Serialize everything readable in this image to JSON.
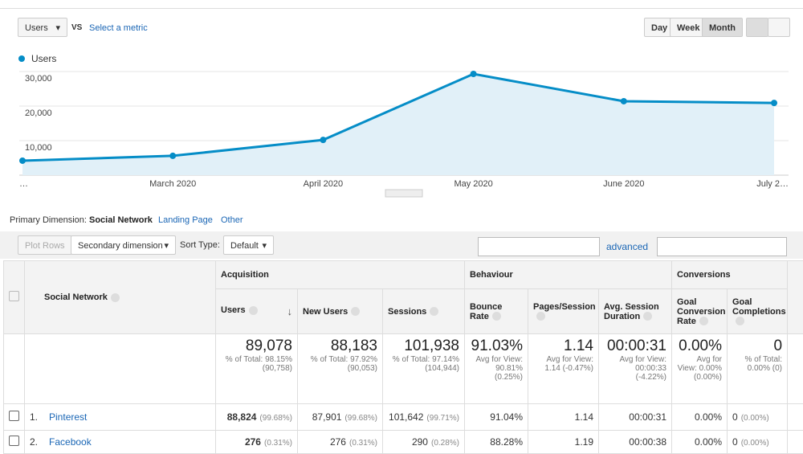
{
  "controls": {
    "metric": "Users",
    "vs": "VS",
    "select_metric": "Select a metric",
    "periods": [
      "Day",
      "Week",
      "Month"
    ]
  },
  "chart_data": {
    "type": "line",
    "categories": [
      "…",
      "March 2020",
      "April 2020",
      "May 2020",
      "June 2020",
      "July 2…"
    ],
    "series": [
      {
        "name": "Users",
        "color": "#058dc7",
        "values": [
          4200,
          5600,
          10200,
          29300,
          21400,
          20900
        ]
      }
    ],
    "ylim": [
      0,
      30000
    ],
    "yticks": [
      {
        "value": 10000,
        "label": "10,000"
      },
      {
        "value": 20000,
        "label": "20,000"
      },
      {
        "value": 30000,
        "label": "30,000"
      }
    ],
    "grid": true,
    "area": true
  },
  "dimensions": {
    "label": "Primary Dimension:",
    "items": [
      "Social Network",
      "Landing Page",
      "Other"
    ]
  },
  "toolbar": {
    "plot_rows": "Plot Rows",
    "secondary": "Secondary dimension",
    "sort_label": "Sort Type:",
    "sort": "Default",
    "advanced": "advanced"
  },
  "table": {
    "first_column": "Social Network",
    "groups": [
      "Acquisition",
      "Behaviour",
      "Conversions"
    ],
    "columns": [
      "Users",
      "New Users",
      "Sessions",
      "Bounce Rate",
      "Pages/Session",
      "Avg. Session Duration",
      "Goal Conversion Rate",
      "Goal Completions"
    ],
    "totals": [
      [
        "89,078",
        "% of Total: 98.15% (90,758)"
      ],
      [
        "88,183",
        "% of Total: 97.92% (90,053)"
      ],
      [
        "101,938",
        "% of Total: 97.14% (104,944)"
      ],
      [
        "91.03%",
        "Avg for View: 90.81% (0.25%)"
      ],
      [
        "1.14",
        "Avg for View: 1.14 (-0.47%)"
      ],
      [
        "00:00:31",
        "Avg for View: 00:00:33 (-4.22%)"
      ],
      [
        "0.00%",
        "Avg for View: 0.00% (0.00%)"
      ],
      [
        "0",
        "% of Total: 0.00% (0)"
      ]
    ],
    "rows": [
      {
        "rank": "1.",
        "name": "Pinterest",
        "cells": [
          [
            "88,824",
            "(99.68%)"
          ],
          [
            "87,901",
            "(99.68%)"
          ],
          [
            "101,642",
            "(99.71%)"
          ],
          [
            "91.04%"
          ],
          [
            "1.14"
          ],
          [
            "00:00:31"
          ],
          [
            "0.00%"
          ],
          [
            "0",
            "(0.00%)"
          ]
        ]
      },
      {
        "rank": "2.",
        "name": "Facebook",
        "cells": [
          [
            "276",
            "(0.31%)"
          ],
          [
            "276",
            "(0.31%)"
          ],
          [
            "290",
            "(0.28%)"
          ],
          [
            "88.28%"
          ],
          [
            "1.19"
          ],
          [
            "00:00:38"
          ],
          [
            "0.00%"
          ],
          [
            "0",
            "(0.00%)"
          ]
        ]
      }
    ]
  }
}
